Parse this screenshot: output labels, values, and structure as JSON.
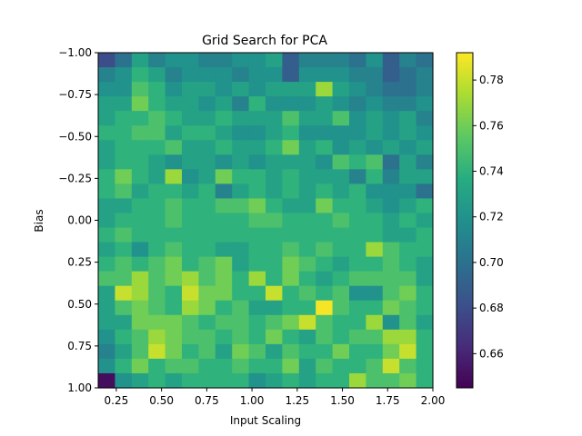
{
  "chart_data": {
    "type": "heatmap",
    "title": "Grid Search for PCA",
    "xlabel": "Input Scaling",
    "ylabel": "Bias",
    "xlim": [
      0.15,
      2.0
    ],
    "ylim": [
      1.0,
      -1.0
    ],
    "x_ticks": [
      0.25,
      0.5,
      0.75,
      1.0,
      1.25,
      1.5,
      1.75,
      2.0
    ],
    "x_tick_labels": [
      "0.25",
      "0.50",
      "0.75",
      "1.00",
      "1.25",
      "1.50",
      "1.75",
      "2.00"
    ],
    "y_ticks": [
      -1.0,
      -0.75,
      -0.5,
      -0.25,
      0.0,
      0.25,
      0.5,
      0.75,
      1.0
    ],
    "y_tick_labels": [
      "−1.00",
      "−0.75",
      "−0.50",
      "−0.25",
      "0.00",
      "0.25",
      "0.50",
      "0.75",
      "1.00"
    ],
    "colorbar": {
      "colormap": "viridis",
      "vmin": 0.645,
      "vmax": 0.792,
      "ticks": [
        0.66,
        0.68,
        0.7,
        0.72,
        0.74,
        0.76,
        0.78
      ],
      "tick_labels": [
        "0.66",
        "0.68",
        "0.70",
        "0.72",
        "0.74",
        "0.76",
        "0.78"
      ]
    },
    "rows_bias_top_to_bottom": [
      [
        0.68,
        0.7,
        0.73,
        0.71,
        0.72,
        0.72,
        0.71,
        0.71,
        0.72,
        0.72,
        0.73,
        0.69,
        0.71,
        0.71,
        0.71,
        0.7,
        0.72,
        0.69,
        0.71,
        0.7
      ],
      [
        0.71,
        0.72,
        0.74,
        0.73,
        0.71,
        0.72,
        0.72,
        0.72,
        0.71,
        0.72,
        0.72,
        0.69,
        0.72,
        0.72,
        0.72,
        0.71,
        0.71,
        0.69,
        0.7,
        0.71
      ],
      [
        0.72,
        0.72,
        0.75,
        0.74,
        0.72,
        0.73,
        0.73,
        0.72,
        0.73,
        0.72,
        0.73,
        0.73,
        0.73,
        0.77,
        0.73,
        0.72,
        0.71,
        0.7,
        0.7,
        0.71
      ],
      [
        0.73,
        0.73,
        0.76,
        0.74,
        0.73,
        0.73,
        0.72,
        0.73,
        0.71,
        0.74,
        0.72,
        0.72,
        0.72,
        0.73,
        0.72,
        0.71,
        0.72,
        0.71,
        0.71,
        0.72
      ],
      [
        0.73,
        0.74,
        0.74,
        0.75,
        0.74,
        0.73,
        0.73,
        0.74,
        0.73,
        0.73,
        0.73,
        0.75,
        0.73,
        0.73,
        0.75,
        0.72,
        0.73,
        0.72,
        0.73,
        0.71
      ],
      [
        0.74,
        0.74,
        0.75,
        0.75,
        0.73,
        0.74,
        0.74,
        0.73,
        0.72,
        0.72,
        0.73,
        0.74,
        0.72,
        0.72,
        0.72,
        0.72,
        0.73,
        0.72,
        0.73,
        0.72
      ],
      [
        0.73,
        0.74,
        0.74,
        0.74,
        0.75,
        0.73,
        0.73,
        0.74,
        0.73,
        0.73,
        0.74,
        0.76,
        0.73,
        0.74,
        0.72,
        0.73,
        0.72,
        0.73,
        0.72,
        0.73
      ],
      [
        0.73,
        0.74,
        0.74,
        0.73,
        0.72,
        0.73,
        0.73,
        0.72,
        0.73,
        0.72,
        0.73,
        0.73,
        0.73,
        0.72,
        0.75,
        0.74,
        0.75,
        0.7,
        0.73,
        0.71
      ],
      [
        0.74,
        0.76,
        0.74,
        0.73,
        0.77,
        0.72,
        0.73,
        0.76,
        0.74,
        0.74,
        0.73,
        0.74,
        0.73,
        0.73,
        0.73,
        0.71,
        0.74,
        0.71,
        0.73,
        0.73
      ],
      [
        0.74,
        0.75,
        0.73,
        0.74,
        0.74,
        0.73,
        0.74,
        0.71,
        0.73,
        0.74,
        0.73,
        0.74,
        0.73,
        0.74,
        0.73,
        0.74,
        0.72,
        0.72,
        0.72,
        0.7
      ],
      [
        0.73,
        0.73,
        0.74,
        0.74,
        0.75,
        0.74,
        0.74,
        0.75,
        0.75,
        0.76,
        0.74,
        0.73,
        0.73,
        0.76,
        0.74,
        0.74,
        0.73,
        0.72,
        0.73,
        0.74
      ],
      [
        0.73,
        0.74,
        0.74,
        0.74,
        0.75,
        0.74,
        0.74,
        0.74,
        0.74,
        0.75,
        0.75,
        0.74,
        0.74,
        0.74,
        0.75,
        0.74,
        0.74,
        0.73,
        0.74,
        0.73
      ],
      [
        0.74,
        0.75,
        0.74,
        0.74,
        0.74,
        0.74,
        0.74,
        0.74,
        0.74,
        0.74,
        0.74,
        0.74,
        0.74,
        0.74,
        0.74,
        0.74,
        0.74,
        0.73,
        0.73,
        0.74
      ],
      [
        0.73,
        0.74,
        0.72,
        0.74,
        0.75,
        0.74,
        0.74,
        0.73,
        0.73,
        0.74,
        0.74,
        0.75,
        0.74,
        0.75,
        0.74,
        0.74,
        0.77,
        0.75,
        0.74,
        0.74
      ],
      [
        0.74,
        0.75,
        0.74,
        0.75,
        0.76,
        0.74,
        0.75,
        0.76,
        0.73,
        0.74,
        0.74,
        0.76,
        0.75,
        0.74,
        0.73,
        0.74,
        0.74,
        0.75,
        0.74,
        0.73
      ],
      [
        0.75,
        0.75,
        0.77,
        0.75,
        0.76,
        0.77,
        0.75,
        0.76,
        0.74,
        0.77,
        0.74,
        0.76,
        0.74,
        0.73,
        0.74,
        0.75,
        0.75,
        0.75,
        0.75,
        0.73
      ],
      [
        0.73,
        0.78,
        0.77,
        0.75,
        0.74,
        0.78,
        0.76,
        0.76,
        0.74,
        0.74,
        0.78,
        0.74,
        0.75,
        0.74,
        0.75,
        0.72,
        0.72,
        0.75,
        0.76,
        0.74
      ],
      [
        0.73,
        0.75,
        0.76,
        0.75,
        0.74,
        0.77,
        0.76,
        0.74,
        0.75,
        0.73,
        0.73,
        0.74,
        0.74,
        0.79,
        0.75,
        0.74,
        0.74,
        0.76,
        0.75,
        0.74
      ],
      [
        0.73,
        0.73,
        0.76,
        0.76,
        0.76,
        0.75,
        0.74,
        0.75,
        0.75,
        0.74,
        0.75,
        0.76,
        0.78,
        0.75,
        0.74,
        0.74,
        0.77,
        0.72,
        0.75,
        0.73
      ],
      [
        0.72,
        0.74,
        0.75,
        0.77,
        0.76,
        0.75,
        0.75,
        0.74,
        0.75,
        0.74,
        0.76,
        0.74,
        0.73,
        0.75,
        0.74,
        0.75,
        0.75,
        0.77,
        0.77,
        0.74
      ],
      [
        0.71,
        0.73,
        0.75,
        0.78,
        0.76,
        0.74,
        0.75,
        0.73,
        0.76,
        0.75,
        0.73,
        0.75,
        0.74,
        0.74,
        0.76,
        0.74,
        0.74,
        0.76,
        0.78,
        0.74
      ],
      [
        0.72,
        0.74,
        0.76,
        0.74,
        0.75,
        0.75,
        0.74,
        0.74,
        0.75,
        0.74,
        0.74,
        0.76,
        0.73,
        0.75,
        0.74,
        0.74,
        0.75,
        0.78,
        0.75,
        0.74
      ],
      [
        0.65,
        0.72,
        0.73,
        0.74,
        0.73,
        0.74,
        0.74,
        0.74,
        0.74,
        0.72,
        0.73,
        0.74,
        0.73,
        0.74,
        0.74,
        0.77,
        0.75,
        0.75,
        0.76,
        0.74
      ]
    ]
  }
}
